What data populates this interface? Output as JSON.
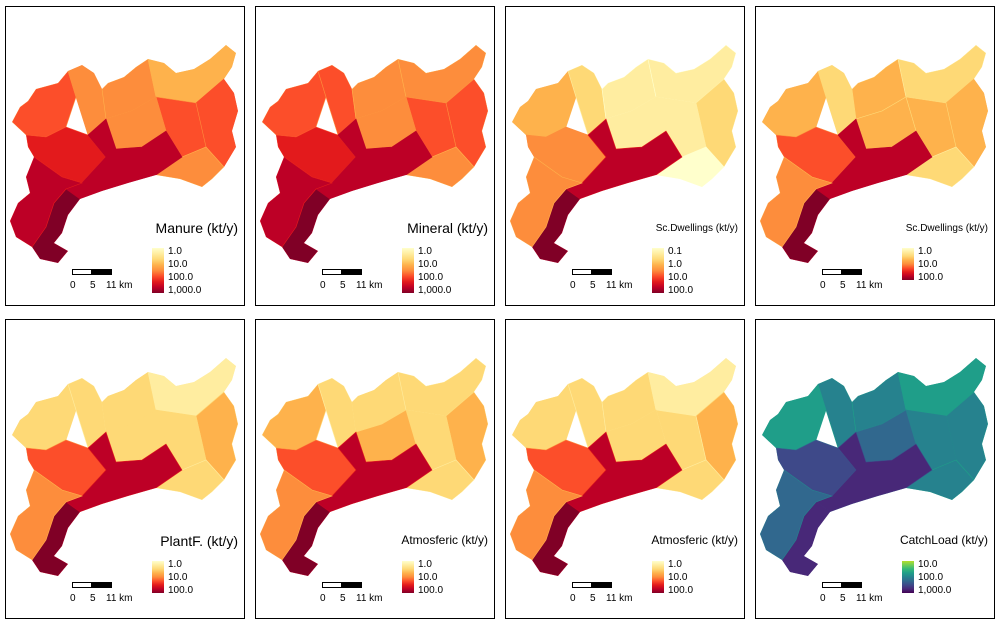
{
  "panels": [
    {
      "title": "Manure (kt/y)",
      "title_size": "large",
      "palette": "ylorrd",
      "ticks": [
        "1.0",
        "10.0",
        "100.0",
        "1,000.0"
      ],
      "weights": [
        0.62,
        0.55,
        0.48,
        0.4,
        0.66,
        0.58,
        0.52,
        0.45,
        0.7,
        0.9,
        0.96,
        0.85
      ]
    },
    {
      "title": "Mineral (kt/y)",
      "title_size": "large",
      "palette": "ylorrd",
      "ticks": [
        "1.0",
        "10.0",
        "100.0",
        "1,000.0"
      ],
      "weights": [
        0.6,
        0.58,
        0.5,
        0.45,
        0.64,
        0.6,
        0.55,
        0.5,
        0.72,
        0.92,
        0.97,
        0.86
      ]
    },
    {
      "title": "Sc.Dwellings (kt/y)",
      "title_size": "small",
      "palette": "ylorrd",
      "ticks": [
        "0.1",
        "1.0",
        "10.0",
        "100.0"
      ],
      "weights": [
        0.4,
        0.2,
        0.12,
        0.08,
        0.25,
        0.18,
        0.15,
        0.06,
        0.55,
        0.88,
        0.95,
        0.45
      ]
    },
    {
      "title": "Sc.Dwellings (kt/y)",
      "title_size": "small",
      "palette": "ylorrd",
      "ticks": [
        "1.0",
        "10.0",
        "100.0"
      ],
      "weights": [
        0.42,
        0.3,
        0.35,
        0.22,
        0.4,
        0.32,
        0.38,
        0.25,
        0.62,
        0.9,
        0.95,
        0.5
      ]
    },
    {
      "title": "PlantF. (kt/y)",
      "title_size": "large",
      "palette": "ylorrd",
      "ticks": [
        "1.0",
        "10.0",
        "100.0"
      ],
      "weights": [
        0.3,
        0.22,
        0.28,
        0.18,
        0.35,
        0.28,
        0.3,
        0.22,
        0.58,
        0.88,
        0.95,
        0.45
      ]
    },
    {
      "title": "Atmosferic (kt/y)",
      "title_size": "medium",
      "palette": "ylorrd",
      "ticks": [
        "1.0",
        "10.0",
        "100.0"
      ],
      "weights": [
        0.32,
        0.24,
        0.28,
        0.2,
        0.36,
        0.28,
        0.32,
        0.24,
        0.6,
        0.88,
        0.96,
        0.48
      ]
    },
    {
      "title": "Atmosferic (kt/y)",
      "title_size": "medium",
      "palette": "ylorrd",
      "ticks": [
        "1.0",
        "10.0",
        "100.0"
      ],
      "weights": [
        0.3,
        0.22,
        0.26,
        0.18,
        0.34,
        0.26,
        0.3,
        0.22,
        0.58,
        0.86,
        0.95,
        0.46
      ]
    },
    {
      "title": "CatchLoad (kt/y)",
      "title_size": "medium",
      "palette": "viridis",
      "ticks": [
        "10.0",
        "100.0",
        "1,000.0"
      ],
      "weights": [
        0.4,
        0.45,
        0.5,
        0.42,
        0.48,
        0.55,
        0.6,
        0.5,
        0.7,
        0.85,
        0.92,
        0.62
      ]
    }
  ],
  "scalebar": {
    "labels": [
      "0",
      "5",
      "11 km"
    ]
  },
  "colors": {
    "ylorrd": [
      "#ffffcc",
      "#ffeda0",
      "#fed976",
      "#feb24c",
      "#fd8d3c",
      "#fc4e2a",
      "#e31a1c",
      "#bd0026",
      "#800026"
    ],
    "viridis": [
      "#b5de2b",
      "#6ece58",
      "#35b779",
      "#1f9e89",
      "#26828e",
      "#31688e",
      "#3e4989",
      "#482878",
      "#440154"
    ]
  }
}
